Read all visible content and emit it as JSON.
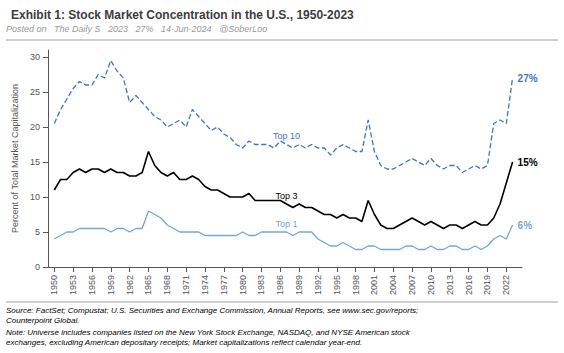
{
  "chart_data": {
    "type": "line",
    "title": "Exhibit 1: Stock Market Concentration in the U.S., 1950-2023",
    "y_label": "Percent of Total Market Capitalization",
    "annotations": [
      "Posted on",
      "The Daily S",
      "2023",
      "27%",
      "14-Jun-2024",
      "@SoberLoo"
    ],
    "source": "Source: FactSet; Compustat; U.S. Securities and Exchange Commission, Annual Reports, see www.sec.gov/reports;\nCounterpoint Global.",
    "note": "Note: Universe includes companies listed on the New York Stock Exchange, NASDAQ, and NYSE American stock\nexchanges, excluding American depositary receipts; Market capitalizations reflect calendar year-end.",
    "x": [
      1950,
      1951,
      1952,
      1953,
      1954,
      1955,
      1956,
      1957,
      1958,
      1959,
      1960,
      1961,
      1962,
      1963,
      1964,
      1965,
      1966,
      1967,
      1968,
      1969,
      1970,
      1971,
      1972,
      1973,
      1974,
      1975,
      1976,
      1977,
      1978,
      1979,
      1980,
      1981,
      1982,
      1983,
      1984,
      1985,
      1986,
      1987,
      1988,
      1989,
      1990,
      1991,
      1992,
      1993,
      1994,
      1995,
      1996,
      1997,
      1998,
      1999,
      2000,
      2001,
      2002,
      2003,
      2004,
      2005,
      2006,
      2007,
      2008,
      2009,
      2010,
      2011,
      2012,
      2013,
      2014,
      2015,
      2016,
      2017,
      2018,
      2019,
      2020,
      2021,
      2022,
      2023
    ],
    "series": [
      {
        "name": "Top 10",
        "color": "#4472C4",
        "line_style": "dashed",
        "end_label": "27%",
        "values": [
          20.5,
          22.5,
          24.0,
          25.5,
          26.5,
          26.0,
          26.0,
          27.5,
          27.0,
          29.5,
          28.0,
          27.0,
          23.5,
          24.5,
          23.5,
          22.5,
          21.5,
          21.0,
          20.0,
          20.5,
          21.0,
          20.0,
          22.5,
          21.5,
          20.5,
          19.5,
          20.0,
          19.0,
          18.5,
          17.5,
          17.0,
          18.0,
          17.5,
          17.5,
          17.5,
          17.0,
          18.0,
          17.5,
          17.0,
          17.5,
          17.0,
          17.5,
          17.0,
          17.0,
          16.0,
          17.0,
          17.5,
          17.0,
          16.5,
          16.5,
          21.0,
          16.5,
          14.5,
          14.0,
          14.0,
          14.5,
          15.0,
          15.5,
          15.0,
          14.5,
          15.5,
          14.5,
          14.0,
          14.5,
          14.5,
          13.5,
          14.0,
          14.5,
          14.0,
          14.5,
          20.5,
          21.0,
          20.5,
          27.0
        ]
      },
      {
        "name": "Top 3",
        "color": "#000000",
        "line_style": "solid",
        "end_label": "15%",
        "values": [
          11.0,
          12.5,
          12.5,
          13.5,
          14.0,
          13.5,
          14.0,
          14.0,
          13.5,
          14.0,
          13.5,
          13.5,
          13.0,
          13.0,
          13.5,
          16.5,
          14.5,
          13.5,
          13.0,
          13.5,
          12.5,
          12.5,
          13.0,
          12.5,
          11.5,
          11.0,
          11.0,
          10.5,
          10.0,
          10.0,
          10.0,
          10.5,
          9.5,
          9.5,
          9.5,
          9.5,
          9.5,
          9.0,
          8.5,
          9.0,
          8.5,
          8.5,
          8.0,
          7.5,
          7.5,
          7.0,
          7.5,
          7.0,
          7.0,
          6.5,
          9.5,
          7.5,
          6.0,
          5.5,
          5.5,
          6.0,
          6.5,
          7.0,
          6.5,
          6.0,
          6.5,
          6.0,
          5.5,
          6.0,
          6.0,
          5.5,
          6.0,
          6.5,
          6.0,
          6.0,
          7.0,
          9.0,
          12.0,
          15.0
        ]
      },
      {
        "name": "Top 1",
        "color": "#70A8D8",
        "line_style": "solid",
        "end_label": "6%",
        "values": [
          4.0,
          4.5,
          5.0,
          5.0,
          5.5,
          5.5,
          5.5,
          5.5,
          5.5,
          5.0,
          5.5,
          5.5,
          5.0,
          5.5,
          5.5,
          8.0,
          7.5,
          7.0,
          6.0,
          5.5,
          5.0,
          5.0,
          5.0,
          5.0,
          4.5,
          4.5,
          4.5,
          4.5,
          4.5,
          4.5,
          5.0,
          4.5,
          4.5,
          5.0,
          5.0,
          5.0,
          5.0,
          5.0,
          4.5,
          5.0,
          5.0,
          5.0,
          4.0,
          3.5,
          3.0,
          3.0,
          3.5,
          3.0,
          2.5,
          2.5,
          3.0,
          3.0,
          2.5,
          2.5,
          2.5,
          2.5,
          3.0,
          3.0,
          2.5,
          2.5,
          3.0,
          2.5,
          2.5,
          3.0,
          3.0,
          2.5,
          2.5,
          3.0,
          2.5,
          3.0,
          4.0,
          4.5,
          4.0,
          6.0
        ]
      }
    ],
    "xlim": [
      1949,
      2024.5
    ],
    "xticks": [
      1950,
      1953,
      1956,
      1959,
      1962,
      1965,
      1968,
      1971,
      1974,
      1977,
      1980,
      1983,
      1986,
      1989,
      1992,
      1995,
      1998,
      2001,
      2004,
      2007,
      2010,
      2013,
      2016,
      2019,
      2022
    ],
    "ylim": [
      0,
      31
    ],
    "yticks": [
      0,
      5,
      10,
      15,
      20,
      25,
      30
    ],
    "grid": false
  }
}
